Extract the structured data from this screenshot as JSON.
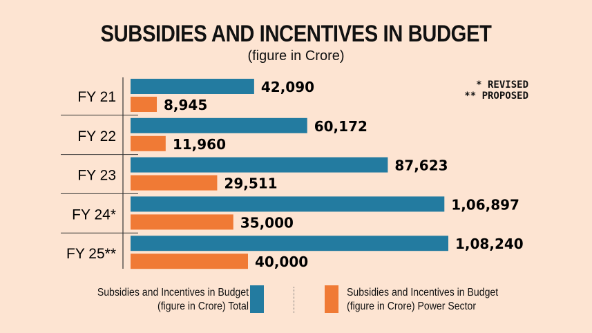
{
  "chart_data": {
    "type": "bar",
    "orientation": "horizontal",
    "title": "SUBSIDIES AND INCENTIVES IN BUDGET",
    "subtitle": "(figure in Crore)",
    "categories": [
      "FY 21",
      "FY 22",
      "FY 23",
      "FY 24*",
      "FY 25**"
    ],
    "series": [
      {
        "name": "Subsidies and Incentives in Budget (figure in Crore) Total",
        "color": "#237ba0",
        "values": [
          42090,
          60172,
          87623,
          106897,
          108240
        ],
        "labels": [
          "42,090",
          "60,172",
          "87,623",
          "1,06,897",
          "1,08,240"
        ]
      },
      {
        "name": "Subsidies and Incentives in Budget (figure in Crore) Power Sector",
        "color": "#f07a35",
        "values": [
          8945,
          11960,
          29511,
          35000,
          40000
        ],
        "labels": [
          "8,945",
          "11,960",
          "29,511",
          "35,000",
          "40,000"
        ]
      }
    ],
    "notes": [
      "* REVISED",
      "** PROPOSED"
    ],
    "legend_position": "bottom",
    "grid": false,
    "xlim": [
      0,
      110000
    ]
  },
  "legend": {
    "total_line1": "Subsidies and Incentives in Budget",
    "total_line2": "(figure in Crore) Total",
    "power_line1": "Subsidies and Incentives in Budget",
    "power_line2": "(figure in Crore) Power Sector"
  }
}
